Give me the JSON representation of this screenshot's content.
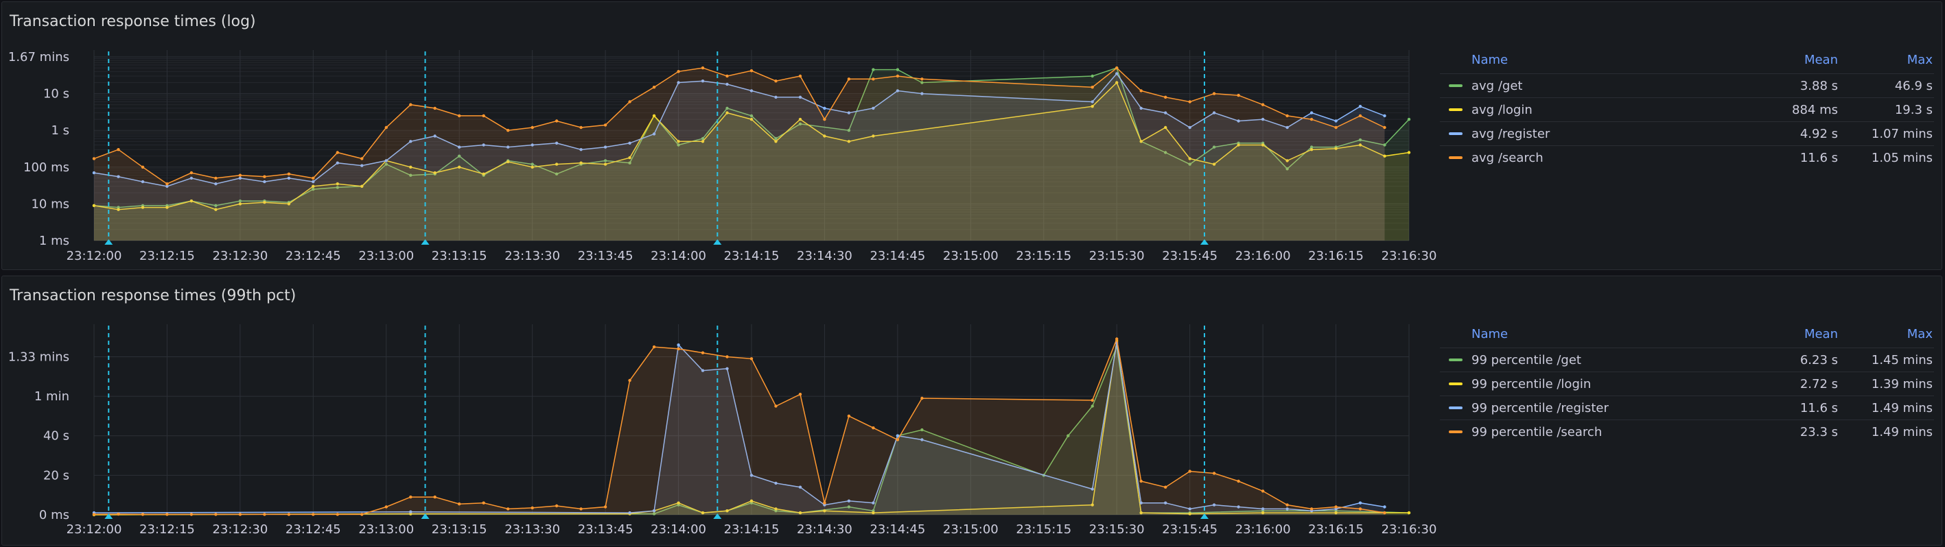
{
  "panels": [
    {
      "title": "Transaction response times (log)",
      "legend": {
        "headers": {
          "name": "Name",
          "mean": "Mean",
          "max": "Max"
        },
        "rows": [
          {
            "name": "avg /get",
            "mean": "3.88 s",
            "max": "46.9 s",
            "color": "#73bf69"
          },
          {
            "name": "avg /login",
            "mean": "884 ms",
            "max": "19.3 s",
            "color": "#fade2a"
          },
          {
            "name": "avg /register",
            "mean": "4.92 s",
            "max": "1.07 mins",
            "color": "#8ab8ff"
          },
          {
            "name": "avg /search",
            "mean": "11.6 s",
            "max": "1.05 mins",
            "color": "#ff9830"
          }
        ]
      }
    },
    {
      "title": "Transaction response times (99th pct)",
      "legend": {
        "headers": {
          "name": "Name",
          "mean": "Mean",
          "max": "Max"
        },
        "rows": [
          {
            "name": "99 percentile /get",
            "mean": "6.23 s",
            "max": "1.45 mins",
            "color": "#73bf69"
          },
          {
            "name": "99 percentile /login",
            "mean": "2.72 s",
            "max": "1.39 mins",
            "color": "#fade2a"
          },
          {
            "name": "99 percentile /register",
            "mean": "11.6 s",
            "max": "1.49 mins",
            "color": "#8ab8ff"
          },
          {
            "name": "99 percentile /search",
            "mean": "23.3 s",
            "max": "1.49 mins",
            "color": "#ff9830"
          }
        ]
      }
    }
  ],
  "chart_data": [
    {
      "type": "area",
      "title": "Transaction response times (log)",
      "y_scale": "log",
      "ylim_seconds": [
        0.001,
        100
      ],
      "y_ticks": [
        {
          "v": 100,
          "label": "1.67 mins"
        },
        {
          "v": 10,
          "label": "10 s"
        },
        {
          "v": 1,
          "label": "1 s"
        },
        {
          "v": 0.1,
          "label": "100 ms"
        },
        {
          "v": 0.01,
          "label": "10 ms"
        },
        {
          "v": 0.001,
          "label": "1 ms"
        }
      ],
      "xlim": [
        "23:12:00",
        "23:16:30"
      ],
      "x_ticks": [
        "23:12:00",
        "23:12:15",
        "23:12:30",
        "23:12:45",
        "23:13:00",
        "23:13:15",
        "23:13:30",
        "23:13:45",
        "23:14:00",
        "23:14:15",
        "23:14:30",
        "23:14:45",
        "23:15:00",
        "23:15:15",
        "23:15:30",
        "23:15:45",
        "23:16:00",
        "23:16:15",
        "23:16:30"
      ],
      "annotations": [
        "23:12:03",
        "23:13:08",
        "23:14:08",
        "23:15:48"
      ],
      "series": [
        {
          "name": "avg /get",
          "color": "#73bf69",
          "x": [
            "23:12:00",
            "23:12:05",
            "23:12:10",
            "23:12:15",
            "23:12:20",
            "23:12:25",
            "23:12:30",
            "23:12:35",
            "23:12:40",
            "23:12:45",
            "23:12:50",
            "23:12:55",
            "23:13:00",
            "23:13:05",
            "23:13:10",
            "23:13:15",
            "23:13:20",
            "23:13:25",
            "23:13:30",
            "23:13:35",
            "23:13:40",
            "23:13:45",
            "23:13:50",
            "23:13:55",
            "23:14:00",
            "23:14:05",
            "23:14:10",
            "23:14:15",
            "23:14:20",
            "23:14:25",
            "23:14:35",
            "23:14:40",
            "23:14:45",
            "23:14:50",
            "23:15:25",
            "23:15:30",
            "23:15:35",
            "23:15:40",
            "23:15:45",
            "23:15:50",
            "23:15:55",
            "23:16:00",
            "23:16:05",
            "23:16:10",
            "23:16:15",
            "23:16:20",
            "23:16:25",
            "23:16:30"
          ],
          "y": [
            0.009,
            0.008,
            0.009,
            0.009,
            0.012,
            0.009,
            0.012,
            0.012,
            0.011,
            0.025,
            0.028,
            0.03,
            0.12,
            0.06,
            0.065,
            0.2,
            0.06,
            0.15,
            0.12,
            0.065,
            0.12,
            0.15,
            0.13,
            2.5,
            0.4,
            0.6,
            4,
            2.5,
            0.6,
            1.5,
            1,
            45,
            45,
            20,
            30,
            50,
            0.5,
            0.25,
            0.12,
            0.35,
            0.45,
            0.45,
            0.09,
            0.35,
            0.35,
            0.55,
            0.4,
            2
          ]
        },
        {
          "name": "avg /login",
          "color": "#fade2a",
          "x": [
            "23:12:00",
            "23:12:05",
            "23:12:10",
            "23:12:15",
            "23:12:20",
            "23:12:25",
            "23:12:30",
            "23:12:35",
            "23:12:40",
            "23:12:45",
            "23:12:50",
            "23:12:55",
            "23:13:00",
            "23:13:05",
            "23:13:10",
            "23:13:15",
            "23:13:20",
            "23:13:25",
            "23:13:30",
            "23:13:35",
            "23:13:40",
            "23:13:45",
            "23:13:50",
            "23:13:55",
            "23:14:00",
            "23:14:05",
            "23:14:10",
            "23:14:15",
            "23:14:20",
            "23:14:25",
            "23:14:30",
            "23:14:35",
            "23:14:40",
            "23:15:25",
            "23:15:30",
            "23:15:35",
            "23:15:40",
            "23:15:45",
            "23:15:50",
            "23:15:55",
            "23:16:00",
            "23:16:05",
            "23:16:10",
            "23:16:15",
            "23:16:20",
            "23:16:25",
            "23:16:30"
          ],
          "y": [
            0.009,
            0.007,
            0.008,
            0.008,
            0.012,
            0.007,
            0.01,
            0.011,
            0.01,
            0.03,
            0.035,
            0.03,
            0.15,
            0.1,
            0.07,
            0.1,
            0.065,
            0.14,
            0.1,
            0.12,
            0.13,
            0.12,
            0.18,
            2.5,
            0.5,
            0.5,
            3,
            2,
            0.5,
            2,
            0.7,
            0.5,
            0.7,
            4.5,
            20,
            0.5,
            1.2,
            0.17,
            0.12,
            0.4,
            0.4,
            0.15,
            0.3,
            0.32,
            0.4,
            0.2,
            0.25
          ]
        },
        {
          "name": "avg /register",
          "color": "#8ab8ff",
          "x": [
            "23:12:00",
            "23:12:05",
            "23:12:10",
            "23:12:15",
            "23:12:20",
            "23:12:25",
            "23:12:30",
            "23:12:35",
            "23:12:40",
            "23:12:45",
            "23:12:50",
            "23:12:55",
            "23:13:00",
            "23:13:05",
            "23:13:10",
            "23:13:15",
            "23:13:20",
            "23:13:25",
            "23:13:30",
            "23:13:35",
            "23:13:40",
            "23:13:45",
            "23:13:50",
            "23:13:55",
            "23:14:00",
            "23:14:05",
            "23:14:10",
            "23:14:15",
            "23:14:20",
            "23:14:25",
            "23:14:30",
            "23:14:35",
            "23:14:40",
            "23:14:45",
            "23:14:50",
            "23:15:25",
            "23:15:30",
            "23:15:35",
            "23:15:40",
            "23:15:45",
            "23:15:50",
            "23:15:55",
            "23:16:00",
            "23:16:05",
            "23:16:10",
            "23:16:15",
            "23:16:20",
            "23:16:25"
          ],
          "y": [
            0.07,
            0.055,
            0.04,
            0.03,
            0.05,
            0.035,
            0.05,
            0.04,
            0.05,
            0.04,
            0.13,
            0.11,
            0.15,
            0.5,
            0.7,
            0.35,
            0.4,
            0.35,
            0.4,
            0.45,
            0.3,
            0.35,
            0.45,
            0.8,
            20,
            22,
            18,
            12,
            8,
            8,
            4,
            3,
            4,
            12,
            10,
            6,
            35,
            4,
            3,
            1.2,
            3,
            1.8,
            2,
            1.2,
            3,
            1.8,
            4.5,
            2.5
          ]
        },
        {
          "name": "avg /search",
          "color": "#ff9830",
          "x": [
            "23:12:00",
            "23:12:05",
            "23:12:10",
            "23:12:15",
            "23:12:20",
            "23:12:25",
            "23:12:30",
            "23:12:35",
            "23:12:40",
            "23:12:45",
            "23:12:50",
            "23:12:55",
            "23:13:00",
            "23:13:05",
            "23:13:10",
            "23:13:15",
            "23:13:20",
            "23:13:25",
            "23:13:30",
            "23:13:35",
            "23:13:40",
            "23:13:45",
            "23:13:50",
            "23:13:55",
            "23:14:00",
            "23:14:05",
            "23:14:10",
            "23:14:15",
            "23:14:20",
            "23:14:25",
            "23:14:30",
            "23:14:35",
            "23:14:40",
            "23:14:45",
            "23:14:50",
            "23:15:25",
            "23:15:30",
            "23:15:35",
            "23:15:40",
            "23:15:45",
            "23:15:50",
            "23:15:55",
            "23:16:00",
            "23:16:05",
            "23:16:10",
            "23:16:15",
            "23:16:20",
            "23:16:25"
          ],
          "y": [
            0.17,
            0.3,
            0.1,
            0.035,
            0.07,
            0.05,
            0.06,
            0.055,
            0.065,
            0.05,
            0.25,
            0.17,
            1.2,
            5,
            4,
            2.5,
            2.5,
            1,
            1.2,
            1.8,
            1.2,
            1.4,
            6,
            15,
            40,
            50,
            30,
            42,
            22,
            30,
            2,
            25,
            25,
            30,
            25,
            15,
            50,
            12,
            8,
            6,
            10,
            9,
            5,
            2.5,
            2,
            1.2,
            2.5,
            1.2
          ]
        }
      ]
    },
    {
      "type": "area",
      "title": "Transaction response times (99th pct)",
      "y_scale": "linear",
      "ylim_seconds": [
        0,
        93
      ],
      "y_ticks": [
        {
          "v": 80,
          "label": "1.33 mins"
        },
        {
          "v": 60,
          "label": "1 min"
        },
        {
          "v": 40,
          "label": "40 s"
        },
        {
          "v": 20,
          "label": "20 s"
        },
        {
          "v": 0,
          "label": "0 ms"
        }
      ],
      "xlim": [
        "23:12:00",
        "23:16:30"
      ],
      "x_ticks": [
        "23:12:00",
        "23:12:15",
        "23:12:30",
        "23:12:45",
        "23:13:00",
        "23:13:15",
        "23:13:30",
        "23:13:45",
        "23:14:00",
        "23:14:15",
        "23:14:30",
        "23:14:45",
        "23:15:00",
        "23:15:15",
        "23:15:30",
        "23:15:45",
        "23:16:00",
        "23:16:15",
        "23:16:30"
      ],
      "annotations": [
        "23:12:03",
        "23:13:08",
        "23:14:08",
        "23:15:48"
      ],
      "series": [
        {
          "name": "99 percentile /get",
          "color": "#73bf69",
          "x": [
            "23:12:00",
            "23:13:05",
            "23:13:55",
            "23:14:00",
            "23:14:05",
            "23:14:10",
            "23:14:15",
            "23:14:20",
            "23:14:25",
            "23:14:35",
            "23:14:40",
            "23:14:45",
            "23:14:50",
            "23:15:15",
            "23:15:20",
            "23:15:25",
            "23:15:30",
            "23:15:35",
            "23:15:45",
            "23:16:00",
            "23:16:15",
            "23:16:30"
          ],
          "y": [
            0,
            0.5,
            0.5,
            5,
            1,
            2,
            6,
            2,
            1,
            4,
            2,
            40,
            43,
            20,
            40,
            55,
            85,
            1,
            1,
            2,
            2,
            1
          ]
        },
        {
          "name": "99 percentile /login",
          "color": "#fade2a",
          "x": [
            "23:12:00",
            "23:13:05",
            "23:13:50",
            "23:13:55",
            "23:14:00",
            "23:14:05",
            "23:14:10",
            "23:14:15",
            "23:14:20",
            "23:14:25",
            "23:14:30",
            "23:14:40",
            "23:15:25",
            "23:15:30",
            "23:15:35",
            "23:15:45",
            "23:16:00",
            "23:16:15",
            "23:16:30"
          ],
          "y": [
            0,
            0.5,
            0.5,
            2,
            6,
            1,
            2,
            7,
            3,
            1,
            2,
            1,
            5,
            88,
            1,
            0.5,
            1,
            1,
            1
          ]
        },
        {
          "name": "99 percentile /register",
          "color": "#8ab8ff",
          "x": [
            "23:12:00",
            "23:13:05",
            "23:13:50",
            "23:13:55",
            "23:14:00",
            "23:14:05",
            "23:14:10",
            "23:14:15",
            "23:14:20",
            "23:14:25",
            "23:14:30",
            "23:14:35",
            "23:14:40",
            "23:14:45",
            "23:14:50",
            "23:15:25",
            "23:15:30",
            "23:15:35",
            "23:15:40",
            "23:15:45",
            "23:15:50",
            "23:15:55",
            "23:16:00",
            "23:16:05",
            "23:16:10",
            "23:16:15",
            "23:16:20",
            "23:16:25"
          ],
          "y": [
            1,
            1.5,
            1,
            2,
            86,
            73,
            74,
            20,
            16,
            14,
            5,
            7,
            6,
            40,
            38,
            13,
            87,
            6,
            6,
            3,
            5,
            4,
            3,
            3,
            2,
            3,
            6,
            4
          ]
        },
        {
          "name": "99 percentile /search",
          "color": "#ff9830",
          "x": [
            "23:12:00",
            "23:12:05",
            "23:12:10",
            "23:12:15",
            "23:12:20",
            "23:12:25",
            "23:12:30",
            "23:12:35",
            "23:12:40",
            "23:12:45",
            "23:12:50",
            "23:12:55",
            "23:13:00",
            "23:13:05",
            "23:13:10",
            "23:13:15",
            "23:13:20",
            "23:13:25",
            "23:13:30",
            "23:13:35",
            "23:13:40",
            "23:13:45",
            "23:13:50",
            "23:13:55",
            "23:14:00",
            "23:14:05",
            "23:14:10",
            "23:14:15",
            "23:14:20",
            "23:14:25",
            "23:14:30",
            "23:14:35",
            "23:14:40",
            "23:14:45",
            "23:14:50",
            "23:15:25",
            "23:15:30",
            "23:15:35",
            "23:15:40",
            "23:15:45",
            "23:15:50",
            "23:15:55",
            "23:16:00",
            "23:16:05",
            "23:16:10",
            "23:16:15",
            "23:16:20",
            "23:16:25"
          ],
          "y": [
            0.2,
            0.3,
            0.2,
            0.2,
            0.2,
            0.2,
            0.2,
            0.2,
            0.2,
            0.2,
            0.2,
            0.2,
            4,
            9,
            9,
            5.5,
            6,
            3,
            3.5,
            4.5,
            3,
            4,
            68,
            85,
            84,
            82,
            80,
            79,
            55,
            61,
            6,
            50,
            44,
            38,
            59,
            58,
            89,
            17,
            14,
            22,
            21,
            17,
            12,
            5,
            3,
            4,
            3,
            1
          ]
        }
      ]
    }
  ]
}
